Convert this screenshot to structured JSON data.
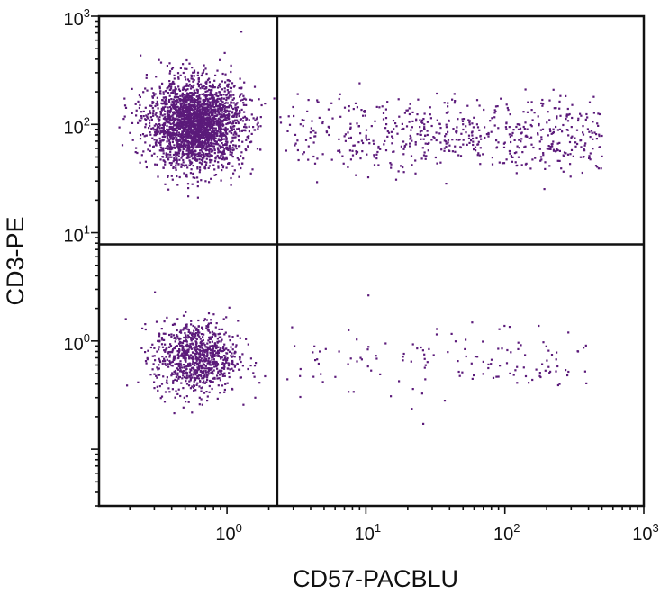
{
  "chart_data": {
    "type": "scatter",
    "title": "",
    "xlabel": "CD57-PACBLU",
    "ylabel": "CD3-PE",
    "x_scale": "log",
    "y_scale": "log",
    "xlim": [
      0.12,
      1000
    ],
    "ylim": [
      0.03,
      1000
    ],
    "x_ticks": [
      {
        "value": 1,
        "base": "10",
        "exp": "0"
      },
      {
        "value": 10,
        "base": "10",
        "exp": "1"
      },
      {
        "value": 100,
        "base": "10",
        "exp": "2"
      },
      {
        "value": 1000,
        "base": "10",
        "exp": "3"
      }
    ],
    "y_ticks": [
      {
        "value": 1,
        "base": "10",
        "exp": "0"
      },
      {
        "value": 10,
        "base": "10",
        "exp": "1"
      },
      {
        "value": 100,
        "base": "10",
        "exp": "2"
      },
      {
        "value": 1000,
        "base": "10",
        "exp": "3"
      }
    ],
    "quadrant_gates": {
      "x": 2.3,
      "y": 7.8
    },
    "grid": false,
    "point_color": "#5b1a7a",
    "clusters": [
      {
        "name": "CD3+ CD57-",
        "x_center": 0.6,
        "y_center": 100,
        "x_spread_log": 0.17,
        "y_spread_log": 0.2,
        "count": 2600
      },
      {
        "name": "CD3+ CD57+",
        "x_range": [
          2.5,
          500
        ],
        "y_center": 80,
        "y_spread_log": 0.17,
        "count": 620
      },
      {
        "name": "CD3- CD57-",
        "x_center": 0.6,
        "y_center": 0.7,
        "x_spread_log": 0.15,
        "y_spread_log": 0.17,
        "count": 900
      },
      {
        "name": "CD3- CD57+",
        "x_range": [
          2.5,
          400
        ],
        "y_center": 0.65,
        "y_spread_log": 0.17,
        "count": 140
      }
    ]
  }
}
